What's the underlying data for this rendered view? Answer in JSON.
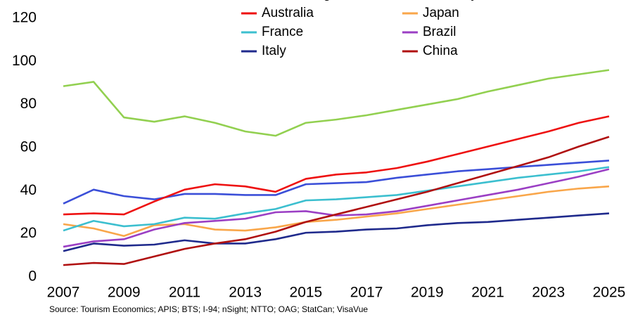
{
  "chart_data": {
    "type": "line",
    "x": [
      2007,
      2008,
      2009,
      2010,
      2011,
      2012,
      2013,
      2014,
      2015,
      2016,
      2017,
      2018,
      2019,
      2020,
      2021,
      2022,
      2023,
      2024,
      2025
    ],
    "xlim": [
      2007,
      2025
    ],
    "xticks": [
      2007,
      2009,
      2011,
      2013,
      2015,
      2017,
      2019,
      2021,
      2023,
      2025
    ],
    "ylim": [
      0,
      120
    ],
    "yticks": [
      0,
      20,
      40,
      60,
      80,
      100,
      120
    ],
    "source": "Source: Tourism Economics; APIS; BTS; I-94; nSight; NTTO; OAG; StatCan; VisaVue",
    "series": [
      {
        "name": "United Kingdom",
        "color": "#3b4fd8",
        "values": [
          34,
          40.5,
          37.5,
          36,
          38.5,
          38.5,
          38,
          38,
          43,
          43.5,
          44,
          46,
          47.5,
          49,
          50,
          51,
          52,
          53,
          54
        ]
      },
      {
        "name": "Germany",
        "color": "#92d050",
        "values": [
          88.5,
          90.5,
          74,
          72,
          74.5,
          71.5,
          67.5,
          65.5,
          71.5,
          73,
          75,
          77.5,
          80,
          82.5,
          86,
          89,
          92,
          94,
          96
        ]
      },
      {
        "name": "Australia",
        "color": "#ee1111",
        "values": [
          29,
          29.5,
          29,
          35,
          40.5,
          43,
          42,
          39.5,
          45.5,
          47.5,
          48.5,
          50.5,
          53.5,
          57,
          60.5,
          64,
          67.5,
          71.5,
          74.5
        ]
      },
      {
        "name": "Japan",
        "color": "#f9a64a",
        "values": [
          24.5,
          22.5,
          19,
          24,
          24.5,
          22,
          21.5,
          23,
          25.5,
          26.5,
          28,
          29.5,
          31.5,
          33.5,
          35.5,
          37.5,
          39.5,
          41,
          42
        ]
      },
      {
        "name": "France",
        "color": "#3cbfcf",
        "values": [
          21.5,
          26,
          23.5,
          24.5,
          27.5,
          27,
          29.5,
          31.5,
          35.5,
          36,
          37,
          38,
          40,
          42,
          44,
          46,
          47.5,
          49,
          51
        ]
      },
      {
        "name": "Brazil",
        "color": "#9b3fc4",
        "values": [
          14,
          16.5,
          17.5,
          22,
          25,
          26,
          27,
          30,
          30.5,
          28.5,
          29,
          30.5,
          33,
          35.5,
          38,
          40.5,
          43.5,
          46.5,
          50
        ]
      },
      {
        "name": "Italy",
        "color": "#1f2a8c",
        "values": [
          12,
          15.5,
          14.5,
          15,
          17,
          15.5,
          15.5,
          17.5,
          20.5,
          21,
          22,
          22.5,
          24,
          25,
          25.5,
          26.5,
          27.5,
          28.5,
          29.5
        ]
      },
      {
        "name": "China",
        "color": "#b01010",
        "values": [
          5.5,
          6.5,
          6,
          9.5,
          13,
          15.5,
          17.5,
          21,
          25.5,
          29,
          32.5,
          36,
          39.5,
          43.5,
          47.5,
          51.5,
          55.5,
          60.5,
          65
        ]
      }
    ]
  }
}
